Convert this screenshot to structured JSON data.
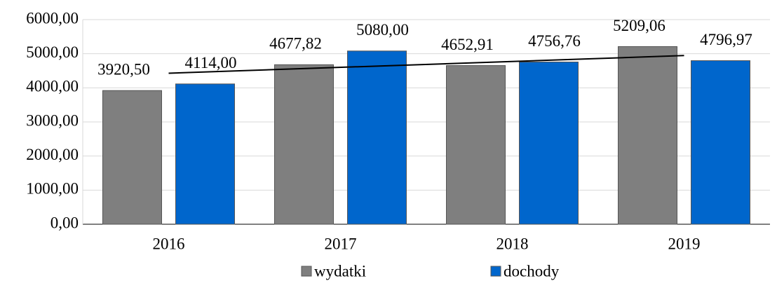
{
  "chart_data": {
    "type": "bar",
    "categories": [
      "2016",
      "2017",
      "2018",
      "2019"
    ],
    "series": [
      {
        "name": "wydatki",
        "color": "#7f7f7f",
        "values": [
          3920.5,
          4677.82,
          4652.91,
          5209.06
        ],
        "value_labels": [
          "3920,50",
          "4677,82",
          "4652,91",
          "5209,06"
        ]
      },
      {
        "name": "dochody",
        "color": "#0066cc",
        "values": [
          4114.0,
          5080.0,
          4756.76,
          4796.97
        ],
        "value_labels": [
          "4114,00",
          "5080,00",
          "4756,76",
          "4796,97"
        ],
        "trendline": "linear"
      }
    ],
    "ylim": [
      0,
      6000
    ],
    "yticks": [
      {
        "value": 0,
        "label": "0,00"
      },
      {
        "value": 1000,
        "label": "1000,00"
      },
      {
        "value": 2000,
        "label": "2000,00"
      },
      {
        "value": 3000,
        "label": "3000,00"
      },
      {
        "value": 4000,
        "label": "4000,00"
      },
      {
        "value": 5000,
        "label": "5000,00"
      },
      {
        "value": 6000,
        "label": "6000,00"
      }
    ],
    "grid": true,
    "legend": "bottom"
  }
}
